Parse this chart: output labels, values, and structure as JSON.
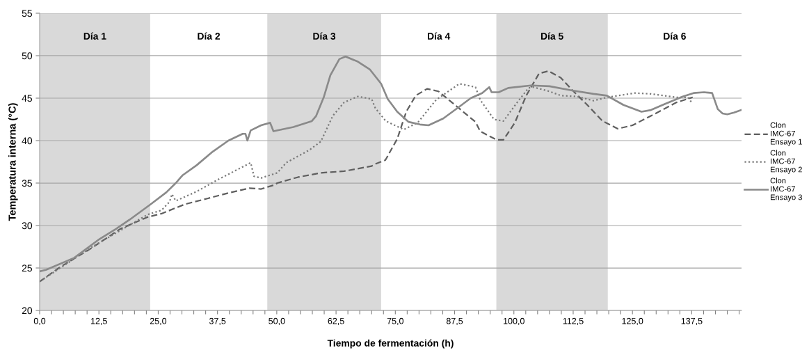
{
  "chart_data": {
    "type": "line",
    "xlabel": "Tiempo de fermentación (h)",
    "ylabel": "Temperatura interna (°C)",
    "xlim": [
      0,
      148
    ],
    "ylim": [
      20,
      55
    ],
    "xticks": [
      {
        "value": 0,
        "label": "0,0"
      },
      {
        "value": 2.5,
        "label": null
      },
      {
        "value": 5,
        "label": null
      },
      {
        "value": 7.5,
        "label": null
      },
      {
        "value": 10,
        "label": null
      },
      {
        "value": 12.5,
        "label": "12,5"
      },
      {
        "value": 15,
        "label": null
      },
      {
        "value": 17.5,
        "label": null
      },
      {
        "value": 20,
        "label": null
      },
      {
        "value": 22.5,
        "label": null
      },
      {
        "value": 25,
        "label": "25,0"
      },
      {
        "value": 27.5,
        "label": null
      },
      {
        "value": 30,
        "label": null
      },
      {
        "value": 32.5,
        "label": null
      },
      {
        "value": 35,
        "label": null
      },
      {
        "value": 37.5,
        "label": "37,5"
      },
      {
        "value": 40,
        "label": null
      },
      {
        "value": 42.5,
        "label": null
      },
      {
        "value": 45,
        "label": null
      },
      {
        "value": 47.5,
        "label": null
      },
      {
        "value": 50,
        "label": "50,0"
      },
      {
        "value": 52.5,
        "label": null
      },
      {
        "value": 55,
        "label": null
      },
      {
        "value": 57.5,
        "label": null
      },
      {
        "value": 60,
        "label": null
      },
      {
        "value": 62.5,
        "label": "62,5"
      },
      {
        "value": 65,
        "label": null
      },
      {
        "value": 67.5,
        "label": null
      },
      {
        "value": 70,
        "label": null
      },
      {
        "value": 72.5,
        "label": null
      },
      {
        "value": 75,
        "label": "75,0"
      },
      {
        "value": 77.5,
        "label": null
      },
      {
        "value": 80,
        "label": null
      },
      {
        "value": 82.5,
        "label": null
      },
      {
        "value": 85,
        "label": null
      },
      {
        "value": 87.5,
        "label": "87,5"
      },
      {
        "value": 90,
        "label": null
      },
      {
        "value": 92.5,
        "label": null
      },
      {
        "value": 95,
        "label": null
      },
      {
        "value": 97.5,
        "label": null
      },
      {
        "value": 100,
        "label": "100,0"
      },
      {
        "value": 102.5,
        "label": null
      },
      {
        "value": 105,
        "label": null
      },
      {
        "value": 107.5,
        "label": null
      },
      {
        "value": 110,
        "label": null
      },
      {
        "value": 112.5,
        "label": "112,5"
      },
      {
        "value": 115,
        "label": null
      },
      {
        "value": 117.5,
        "label": null
      },
      {
        "value": 120,
        "label": null
      },
      {
        "value": 122.5,
        "label": null
      },
      {
        "value": 125,
        "label": "125,0"
      },
      {
        "value": 127.5,
        "label": null
      },
      {
        "value": 130,
        "label": null
      },
      {
        "value": 132.5,
        "label": null
      },
      {
        "value": 135,
        "label": null
      },
      {
        "value": 137.5,
        "label": "137,5"
      },
      {
        "value": 140,
        "label": null
      },
      {
        "value": 142.5,
        "label": null
      },
      {
        "value": 145,
        "label": null
      },
      {
        "value": 147.5,
        "label": null
      }
    ],
    "yticks": [
      20,
      25,
      30,
      35,
      40,
      45,
      50,
      55
    ],
    "grid": "y",
    "legend": "right",
    "bands": [
      {
        "axis": "x",
        "from": 0,
        "to": 23.3,
        "label": "Día 1",
        "color": "#d9d9d9"
      },
      {
        "axis": "x",
        "from": 48,
        "to": 72,
        "label": "Día 3",
        "color": "#d9d9d9"
      },
      {
        "axis": "x",
        "from": 96.3,
        "to": 119.8,
        "label": "Día 5",
        "color": "#d9d9d9"
      }
    ],
    "annotations": [
      "Día 2",
      "Día 4",
      "Día 6"
    ],
    "series": [
      {
        "name": "Clon\nIMC-67\nEnsayo 1",
        "color": "#5f5f5f",
        "line_style": "dashed",
        "x": [
          0,
          4.3,
          11.1,
          17.0,
          22.8,
          25.7,
          30.6,
          35.5,
          40.3,
          44.2,
          46.7,
          49.6,
          50.1,
          54.5,
          59.3,
          64.2,
          70.0,
          71.0,
          72.9,
          75.4,
          77.3,
          79.3,
          81.7,
          84.1,
          88.0,
          91.9,
          92.9,
          96.3,
          97.8,
          100.2,
          102.6,
          105.3,
          107.3,
          109.9,
          112.4,
          115.3,
          118.7,
          121.9,
          125.0,
          129.9,
          134.3,
          137.7
        ],
        "values": [
          23.4,
          25.1,
          27.4,
          29.6,
          31.0,
          31.4,
          32.5,
          33.2,
          33.9,
          34.4,
          34.3,
          34.8,
          35.0,
          35.7,
          36.2,
          36.4,
          37.0,
          37.3,
          37.7,
          40.2,
          43.4,
          45.3,
          46.1,
          45.8,
          44.0,
          42.2,
          41.1,
          40.1,
          40.1,
          42.1,
          45.3,
          47.9,
          48.2,
          47.4,
          45.9,
          44.3,
          42.3,
          41.4,
          41.8,
          43.2,
          44.5,
          45.1
        ]
      },
      {
        "name": "Clon\nIMC-67\nEnsayo 2",
        "color": "#7a7a7a",
        "line_style": "dotted",
        "x": [
          0,
          11.1,
          22.8,
          25.7,
          27.4,
          27.9,
          28.7,
          33.1,
          37.9,
          42.8,
          44.5,
          45.2,
          46.7,
          50.1,
          52.0,
          56.9,
          59.3,
          61.8,
          64.2,
          67.1,
          70.0,
          70.8,
          73.0,
          76.8,
          79.7,
          83.6,
          88.5,
          91.9,
          92.9,
          95.8,
          97.8,
          100.7,
          103.1,
          104.1,
          107.5,
          109.9,
          113.3,
          116.8,
          119.7,
          125.5,
          128.9,
          134.3,
          136.7,
          137.6
        ],
        "values": [
          23.4,
          27.5,
          31.3,
          31.8,
          32.8,
          33.7,
          32.9,
          34.0,
          35.5,
          36.9,
          37.4,
          35.8,
          35.6,
          36.2,
          37.4,
          38.9,
          39.9,
          42.9,
          44.5,
          45.2,
          44.9,
          43.8,
          42.3,
          41.3,
          42.1,
          44.8,
          46.7,
          46.3,
          44.8,
          42.5,
          42.3,
          44.5,
          46.2,
          46.3,
          45.8,
          45.3,
          45.2,
          44.7,
          45.1,
          45.6,
          45.5,
          45.1,
          45.1,
          44.4
        ]
      },
      {
        "name": "Clon\nIMC-67\nEnsayo 3",
        "color": "#8a8a8a",
        "line_style": "solid",
        "x": [
          0,
          1.4,
          7.3,
          12.6,
          16.1,
          19.0,
          23.4,
          26.7,
          28.7,
          30.1,
          33.1,
          36.5,
          39.8,
          42.8,
          43.4,
          43.8,
          44.5,
          46.7,
          48.6,
          49.3,
          53.5,
          57.4,
          58.3,
          59.9,
          61.3,
          63.2,
          64.5,
          67.1,
          69.6,
          72.0,
          73.4,
          75.4,
          77.8,
          80.2,
          82.0,
          85.1,
          88.5,
          90.9,
          93.3,
          94.8,
          95.3,
          96.8,
          98.8,
          103.6,
          107.5,
          112.3,
          116.8,
          119.6,
          123.1,
          126.9,
          128.9,
          131.8,
          135.7,
          137.9,
          140.1,
          141.8,
          143.0,
          144.0,
          145.0,
          146.4,
          147.9
        ],
        "values": [
          24.6,
          24.8,
          26.2,
          28.4,
          29.6,
          30.7,
          32.5,
          33.9,
          35.0,
          35.9,
          37.1,
          38.7,
          40.0,
          40.8,
          40.8,
          40.0,
          41.2,
          41.8,
          42.1,
          41.1,
          41.6,
          42.3,
          42.9,
          45.1,
          47.7,
          49.6,
          49.9,
          49.3,
          48.4,
          46.7,
          44.9,
          43.4,
          42.2,
          41.9,
          41.8,
          42.6,
          44.0,
          45.0,
          45.6,
          46.3,
          45.7,
          45.7,
          46.2,
          46.5,
          46.4,
          45.9,
          45.5,
          45.3,
          44.2,
          43.4,
          43.6,
          44.3,
          45.2,
          45.6,
          45.7,
          45.6,
          43.7,
          43.2,
          43.1,
          43.3,
          43.6
        ]
      }
    ]
  }
}
